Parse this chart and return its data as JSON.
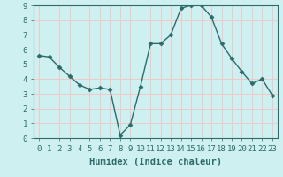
{
  "x": [
    0,
    1,
    2,
    3,
    4,
    5,
    6,
    7,
    8,
    9,
    10,
    11,
    12,
    13,
    14,
    15,
    16,
    17,
    18,
    19,
    20,
    21,
    22,
    23
  ],
  "y": [
    5.6,
    5.5,
    4.8,
    4.2,
    3.6,
    3.3,
    3.4,
    3.3,
    0.2,
    0.9,
    3.5,
    6.4,
    6.4,
    7.0,
    8.8,
    9.0,
    9.0,
    8.2,
    6.4,
    5.4,
    4.5,
    3.7,
    4.0,
    2.9
  ],
  "line_color": "#2d6b6b",
  "marker": "D",
  "marker_size": 2.5,
  "bg_color": "#cff0f0",
  "grid_major_color": "#f0c8c8",
  "grid_minor_color": "#f0c8c8",
  "xlabel": "Humidex (Indice chaleur)",
  "ylim": [
    0,
    9
  ],
  "xlim": [
    -0.5,
    23.5
  ],
  "yticks": [
    0,
    1,
    2,
    3,
    4,
    5,
    6,
    7,
    8,
    9
  ],
  "xticks": [
    0,
    1,
    2,
    3,
    4,
    5,
    6,
    7,
    8,
    9,
    10,
    11,
    12,
    13,
    14,
    15,
    16,
    17,
    18,
    19,
    20,
    21,
    22,
    23
  ],
  "xlabel_fontsize": 7.5,
  "tick_fontsize": 6.5,
  "tick_color": "#2d6b6b",
  "axes_color": "#2d6b6b",
  "linewidth": 1.0
}
